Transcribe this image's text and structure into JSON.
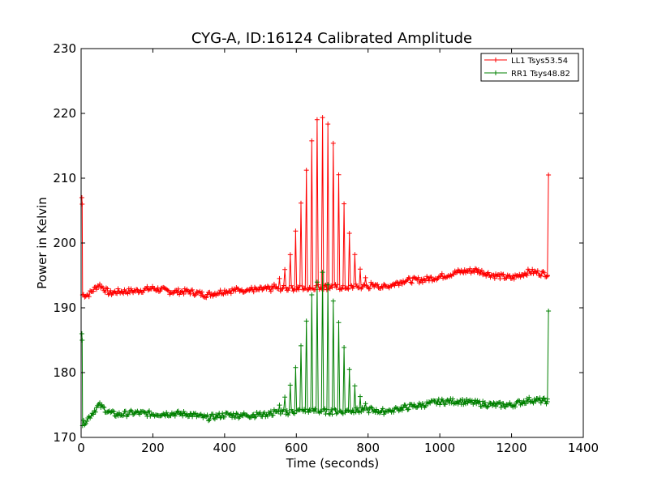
{
  "chart_data": {
    "type": "line",
    "title": "CYG-A, ID:16124 Calibrated Amplitude",
    "xlabel": "Time (seconds)",
    "ylabel": "Power in Kelvin",
    "xlim": [
      0,
      1400
    ],
    "ylim": [
      170,
      230
    ],
    "x_ticks": [
      0,
      200,
      400,
      600,
      800,
      1000,
      1200,
      1400
    ],
    "y_ticks": [
      170,
      180,
      190,
      200,
      210,
      220,
      230
    ],
    "grid": false,
    "legend_position": "top-right",
    "marker": "+",
    "series": [
      {
        "name": "LL1 Tsys53.54",
        "color": "#ff0000",
        "points": [
          [
            2,
            207
          ],
          [
            4,
            192
          ],
          [
            20,
            192
          ],
          [
            50,
            193.6
          ],
          [
            80,
            192.2
          ],
          [
            100,
            192.5
          ],
          [
            150,
            192.6
          ],
          [
            200,
            193
          ],
          [
            250,
            192.5
          ],
          [
            300,
            192.5
          ],
          [
            350,
            192
          ],
          [
            400,
            192.6
          ],
          [
            450,
            192.8
          ],
          [
            500,
            192.8
          ],
          [
            550,
            193
          ],
          [
            600,
            193
          ],
          [
            650,
            193.2
          ],
          [
            700,
            193.2
          ],
          [
            750,
            193.2
          ],
          [
            800,
            193.3
          ],
          [
            850,
            193.2
          ],
          [
            900,
            194.2
          ],
          [
            950,
            194.3
          ],
          [
            1000,
            194.8
          ],
          [
            1050,
            195.5
          ],
          [
            1100,
            195.8
          ],
          [
            1150,
            195
          ],
          [
            1200,
            194.6
          ],
          [
            1250,
            195.6
          ],
          [
            1300,
            195.2
          ]
        ],
        "end_jump": [
          [
            1300,
            195
          ],
          [
            1303,
            210.5
          ]
        ],
        "peak": {
          "center": 672,
          "height": 27.5,
          "width": 70
        }
      },
      {
        "name": "RR1 Tsys48.82",
        "color": "#008000",
        "points": [
          [
            2,
            186
          ],
          [
            4,
            172
          ],
          [
            20,
            173
          ],
          [
            50,
            175
          ],
          [
            80,
            173.8
          ],
          [
            100,
            173.5
          ],
          [
            150,
            173.8
          ],
          [
            200,
            173.6
          ],
          [
            250,
            173.7
          ],
          [
            300,
            173.6
          ],
          [
            350,
            173
          ],
          [
            400,
            173.5
          ],
          [
            450,
            173.4
          ],
          [
            500,
            173.5
          ],
          [
            550,
            173.8
          ],
          [
            600,
            174
          ],
          [
            650,
            174.1
          ],
          [
            700,
            174
          ],
          [
            750,
            174.1
          ],
          [
            800,
            174.2
          ],
          [
            850,
            174
          ],
          [
            900,
            174.6
          ],
          [
            950,
            175
          ],
          [
            1000,
            175.5
          ],
          [
            1050,
            175.6
          ],
          [
            1100,
            175.3
          ],
          [
            1150,
            175
          ],
          [
            1200,
            175
          ],
          [
            1250,
            175.8
          ],
          [
            1300,
            175.6
          ]
        ],
        "end_jump": [
          [
            1300,
            175.5
          ],
          [
            1303,
            189.5
          ]
        ],
        "peak": {
          "center": 672,
          "height": 21.5,
          "width": 70
        }
      }
    ],
    "stripe_period": 15
  }
}
